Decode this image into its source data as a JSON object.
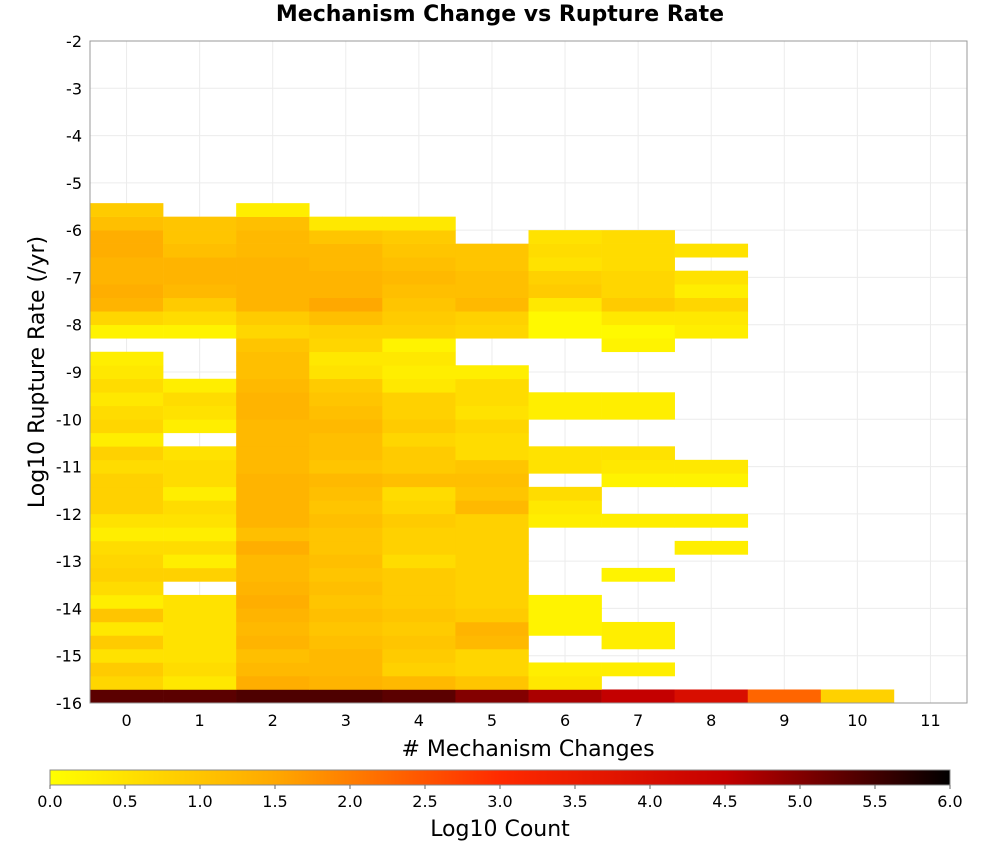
{
  "chart_data": {
    "type": "heatmap",
    "title": "Mechanism Change vs Rupture Rate",
    "xlabel": "# Mechanism Changes",
    "ylabel": "Log10 Rupture Rate (/yr)",
    "xlim": [
      -0.5,
      11.5
    ],
    "ylim": [
      -16,
      -2
    ],
    "x_ticks": [
      0,
      1,
      2,
      3,
      4,
      5,
      6,
      7,
      8,
      9,
      10,
      11
    ],
    "y_ticks": [
      -2,
      -3,
      -4,
      -5,
      -6,
      -7,
      -8,
      -9,
      -10,
      -11,
      -12,
      -13,
      -14,
      -15,
      -16
    ],
    "grid": true,
    "bin_height": 0.2857,
    "y_bin_start": -16,
    "colorbar": {
      "label": "Log10 Count",
      "range": [
        0,
        6
      ],
      "ticks": [
        "0.0",
        "0.5",
        "1.0",
        "1.5",
        "2.0",
        "2.5",
        "3.0",
        "3.5",
        "4.0",
        "4.5",
        "5.0",
        "5.5",
        "6.0"
      ],
      "colors": [
        "#ffff00",
        "#ffa800",
        "#ff2a00",
        "#c40000",
        "#000000"
      ]
    },
    "cells": [
      [
        0,
        0,
        5.3
      ],
      [
        1,
        0,
        5.3
      ],
      [
        2,
        0,
        5.4
      ],
      [
        3,
        0,
        5.4
      ],
      [
        4,
        0,
        5.3
      ],
      [
        5,
        0,
        5.0
      ],
      [
        6,
        0,
        4.7
      ],
      [
        7,
        0,
        4.5
      ],
      [
        8,
        0,
        4.0
      ],
      [
        9,
        0,
        2.3
      ],
      [
        10,
        0,
        0.8
      ],
      [
        0,
        1,
        0.7
      ],
      [
        1,
        1,
        0.4
      ],
      [
        2,
        1,
        1.4
      ],
      [
        3,
        1,
        1.3
      ],
      [
        4,
        1,
        1.2
      ],
      [
        5,
        1,
        1.0
      ],
      [
        6,
        1,
        0.4
      ],
      [
        0,
        2,
        0.9
      ],
      [
        1,
        2,
        0.6
      ],
      [
        2,
        2,
        1.2
      ],
      [
        3,
        2,
        1.2
      ],
      [
        4,
        2,
        0.8
      ],
      [
        5,
        2,
        0.7
      ],
      [
        6,
        2,
        0.3
      ],
      [
        7,
        2,
        0.3
      ],
      [
        0,
        3,
        0.5
      ],
      [
        1,
        3,
        0.5
      ],
      [
        2,
        3,
        1.1
      ],
      [
        3,
        3,
        1.2
      ],
      [
        4,
        3,
        0.9
      ],
      [
        5,
        3,
        0.7
      ],
      [
        0,
        4,
        0.9
      ],
      [
        1,
        4,
        0.5
      ],
      [
        2,
        4,
        1.3
      ],
      [
        3,
        4,
        1.1
      ],
      [
        4,
        4,
        1.0
      ],
      [
        5,
        4,
        1.2
      ],
      [
        7,
        4,
        0.3
      ],
      [
        0,
        5,
        0.4
      ],
      [
        1,
        5,
        0.5
      ],
      [
        2,
        5,
        1.2
      ],
      [
        3,
        5,
        1.0
      ],
      [
        4,
        5,
        0.9
      ],
      [
        5,
        5,
        1.3
      ],
      [
        6,
        5,
        0.2
      ],
      [
        7,
        5,
        0.3
      ],
      [
        0,
        6,
        1.0
      ],
      [
        1,
        6,
        0.5
      ],
      [
        2,
        6,
        1.3
      ],
      [
        3,
        6,
        1.1
      ],
      [
        4,
        6,
        1.0
      ],
      [
        5,
        6,
        0.9
      ],
      [
        6,
        6,
        0.2
      ],
      [
        0,
        7,
        0.3
      ],
      [
        1,
        7,
        0.5
      ],
      [
        2,
        7,
        1.4
      ],
      [
        3,
        7,
        1.0
      ],
      [
        4,
        7,
        0.9
      ],
      [
        5,
        7,
        0.8
      ],
      [
        6,
        7,
        0.2
      ],
      [
        0,
        8,
        0.6
      ],
      [
        2,
        8,
        1.3
      ],
      [
        3,
        8,
        1.1
      ],
      [
        4,
        8,
        0.9
      ],
      [
        5,
        8,
        0.8
      ],
      [
        0,
        9,
        0.8
      ],
      [
        1,
        9,
        0.8
      ],
      [
        2,
        9,
        1.2
      ],
      [
        3,
        9,
        1.0
      ],
      [
        4,
        9,
        0.9
      ],
      [
        5,
        9,
        0.8
      ],
      [
        7,
        9,
        0.2
      ],
      [
        0,
        10,
        0.7
      ],
      [
        1,
        10,
        0.3
      ],
      [
        2,
        10,
        1.2
      ],
      [
        3,
        10,
        1.1
      ],
      [
        4,
        10,
        0.6
      ],
      [
        5,
        10,
        0.8
      ],
      [
        0,
        11,
        0.6
      ],
      [
        1,
        11,
        0.6
      ],
      [
        2,
        11,
        1.4
      ],
      [
        3,
        11,
        1.0
      ],
      [
        4,
        11,
        0.8
      ],
      [
        5,
        11,
        0.8
      ],
      [
        8,
        11,
        0.3
      ],
      [
        0,
        12,
        0.3
      ],
      [
        1,
        12,
        0.3
      ],
      [
        2,
        12,
        1.1
      ],
      [
        3,
        12,
        1.0
      ],
      [
        4,
        12,
        0.8
      ],
      [
        5,
        12,
        0.8
      ],
      [
        0,
        13,
        0.5
      ],
      [
        1,
        13,
        0.5
      ],
      [
        2,
        13,
        1.3
      ],
      [
        3,
        13,
        1.1
      ],
      [
        4,
        13,
        0.9
      ],
      [
        5,
        13,
        0.8
      ],
      [
        6,
        13,
        0.3
      ],
      [
        7,
        13,
        0.3
      ],
      [
        8,
        13,
        0.3
      ],
      [
        0,
        14,
        0.8
      ],
      [
        1,
        14,
        0.6
      ],
      [
        2,
        14,
        1.3
      ],
      [
        3,
        14,
        1.0
      ],
      [
        4,
        14,
        0.7
      ],
      [
        5,
        14,
        1.2
      ],
      [
        6,
        14,
        0.4
      ],
      [
        0,
        15,
        0.8
      ],
      [
        1,
        15,
        0.3
      ],
      [
        2,
        15,
        1.3
      ],
      [
        3,
        15,
        1.1
      ],
      [
        4,
        15,
        0.6
      ],
      [
        5,
        15,
        1.0
      ],
      [
        6,
        15,
        0.6
      ],
      [
        0,
        16,
        0.8
      ],
      [
        1,
        16,
        0.6
      ],
      [
        2,
        16,
        1.3
      ],
      [
        3,
        16,
        1.2
      ],
      [
        4,
        16,
        1.1
      ],
      [
        5,
        16,
        1.1
      ],
      [
        7,
        16,
        0.2
      ],
      [
        8,
        16,
        0.2
      ],
      [
        0,
        17,
        0.6
      ],
      [
        1,
        17,
        0.6
      ],
      [
        2,
        17,
        1.2
      ],
      [
        3,
        17,
        1.0
      ],
      [
        4,
        17,
        0.9
      ],
      [
        5,
        17,
        1.0
      ],
      [
        6,
        17,
        0.5
      ],
      [
        7,
        17,
        0.4
      ],
      [
        8,
        17,
        0.4
      ],
      [
        0,
        18,
        0.8
      ],
      [
        1,
        18,
        0.5
      ],
      [
        2,
        18,
        1.2
      ],
      [
        3,
        18,
        1.1
      ],
      [
        4,
        18,
        0.9
      ],
      [
        5,
        18,
        0.6
      ],
      [
        6,
        18,
        0.5
      ],
      [
        7,
        18,
        0.5
      ],
      [
        0,
        19,
        0.3
      ],
      [
        2,
        19,
        1.2
      ],
      [
        3,
        19,
        1.1
      ],
      [
        4,
        19,
        0.7
      ],
      [
        5,
        19,
        0.6
      ],
      [
        0,
        20,
        0.7
      ],
      [
        1,
        20,
        0.3
      ],
      [
        2,
        20,
        1.2
      ],
      [
        3,
        20,
        1.2
      ],
      [
        4,
        20,
        0.9
      ],
      [
        5,
        20,
        0.7
      ],
      [
        0,
        21,
        0.6
      ],
      [
        1,
        21,
        0.5
      ],
      [
        2,
        21,
        1.3
      ],
      [
        3,
        21,
        1.1
      ],
      [
        4,
        21,
        0.8
      ],
      [
        5,
        21,
        0.5
      ],
      [
        6,
        21,
        0.3
      ],
      [
        7,
        21,
        0.3
      ],
      [
        0,
        22,
        0.4
      ],
      [
        1,
        22,
        0.6
      ],
      [
        2,
        22,
        1.3
      ],
      [
        3,
        22,
        1.0
      ],
      [
        4,
        22,
        0.8
      ],
      [
        5,
        22,
        0.6
      ],
      [
        6,
        22,
        0.3
      ],
      [
        7,
        22,
        0.3
      ],
      [
        0,
        23,
        0.6
      ],
      [
        1,
        23,
        0.3
      ],
      [
        2,
        23,
        1.2
      ],
      [
        3,
        23,
        0.9
      ],
      [
        4,
        23,
        0.4
      ],
      [
        5,
        23,
        0.6
      ],
      [
        0,
        24,
        0.4
      ],
      [
        2,
        24,
        1.1
      ],
      [
        3,
        24,
        0.5
      ],
      [
        4,
        24,
        0.3
      ],
      [
        5,
        24,
        0.3
      ],
      [
        0,
        25,
        0.3
      ],
      [
        2,
        25,
        1.1
      ],
      [
        3,
        25,
        0.4
      ],
      [
        4,
        25,
        0.4
      ],
      [
        2,
        26,
        1.0
      ],
      [
        3,
        26,
        0.7
      ],
      [
        4,
        26,
        0.2
      ],
      [
        7,
        26,
        0.2
      ],
      [
        0,
        27,
        0.2
      ],
      [
        1,
        27,
        0.2
      ],
      [
        2,
        27,
        0.7
      ],
      [
        3,
        27,
        0.8
      ],
      [
        4,
        27,
        0.8
      ],
      [
        5,
        27,
        0.7
      ],
      [
        6,
        27,
        0.1
      ],
      [
        7,
        27,
        0.1
      ],
      [
        8,
        27,
        0.3
      ],
      [
        0,
        28,
        0.7
      ],
      [
        1,
        28,
        0.6
      ],
      [
        2,
        28,
        0.9
      ],
      [
        3,
        28,
        1.1
      ],
      [
        4,
        28,
        0.9
      ],
      [
        5,
        28,
        0.8
      ],
      [
        6,
        28,
        0.1
      ],
      [
        7,
        28,
        0.4
      ],
      [
        8,
        28,
        0.4
      ],
      [
        0,
        29,
        1.3
      ],
      [
        1,
        29,
        0.9
      ],
      [
        2,
        29,
        1.3
      ],
      [
        3,
        29,
        1.5
      ],
      [
        4,
        29,
        1.0
      ],
      [
        5,
        29,
        1.2
      ],
      [
        6,
        29,
        0.4
      ],
      [
        7,
        29,
        0.9
      ],
      [
        8,
        29,
        0.7
      ],
      [
        0,
        30,
        1.4
      ],
      [
        1,
        30,
        1.2
      ],
      [
        2,
        30,
        1.3
      ],
      [
        3,
        30,
        1.3
      ],
      [
        4,
        30,
        1.1
      ],
      [
        5,
        30,
        1.1
      ],
      [
        6,
        30,
        0.9
      ],
      [
        7,
        30,
        0.7
      ],
      [
        8,
        30,
        0.3
      ],
      [
        0,
        31,
        1.3
      ],
      [
        1,
        31,
        1.3
      ],
      [
        2,
        31,
        1.3
      ],
      [
        3,
        31,
        1.3
      ],
      [
        4,
        31,
        1.2
      ],
      [
        5,
        31,
        1.1
      ],
      [
        6,
        31,
        0.8
      ],
      [
        7,
        31,
        0.7
      ],
      [
        8,
        31,
        0.5
      ],
      [
        0,
        32,
        1.3
      ],
      [
        1,
        32,
        1.3
      ],
      [
        2,
        32,
        1.3
      ],
      [
        3,
        32,
        1.2
      ],
      [
        4,
        32,
        1.1
      ],
      [
        5,
        32,
        1.0
      ],
      [
        6,
        32,
        0.5
      ],
      [
        7,
        32,
        0.6
      ],
      [
        0,
        33,
        1.4
      ],
      [
        1,
        33,
        1.1
      ],
      [
        2,
        33,
        1.2
      ],
      [
        3,
        33,
        1.2
      ],
      [
        4,
        33,
        1.0
      ],
      [
        5,
        33,
        1.0
      ],
      [
        6,
        33,
        0.6
      ],
      [
        7,
        33,
        0.6
      ],
      [
        8,
        33,
        0.5
      ],
      [
        0,
        34,
        1.4
      ],
      [
        1,
        34,
        1.0
      ],
      [
        2,
        34,
        1.2
      ],
      [
        3,
        34,
        1.0
      ],
      [
        4,
        34,
        0.9
      ],
      [
        6,
        34,
        0.5
      ],
      [
        7,
        34,
        0.6
      ],
      [
        0,
        35,
        1.1
      ],
      [
        1,
        35,
        1.0
      ],
      [
        2,
        35,
        1.1
      ],
      [
        3,
        35,
        0.4
      ],
      [
        4,
        35,
        0.4
      ],
      [
        0,
        36,
        0.9
      ],
      [
        2,
        36,
        0.3
      ]
    ]
  }
}
